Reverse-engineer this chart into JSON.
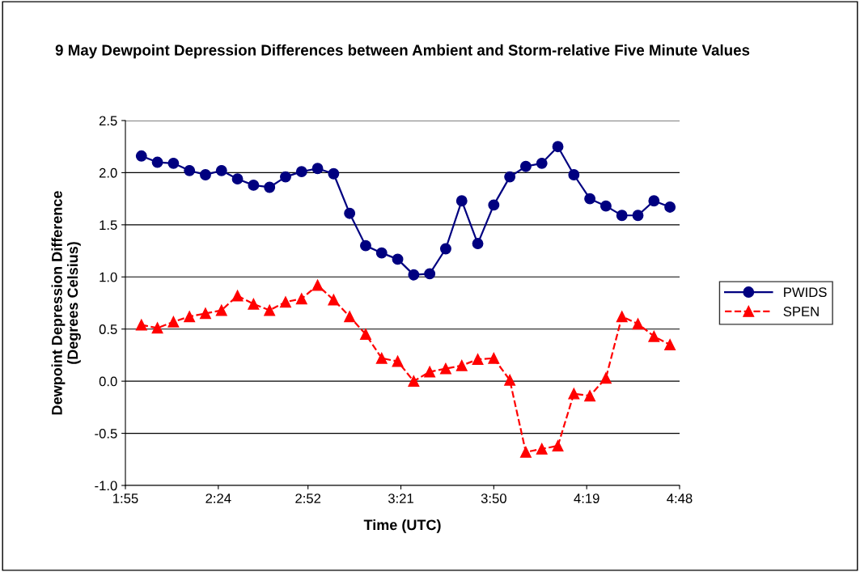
{
  "chart_data": {
    "type": "line",
    "title": "9 May Dewpoint Depression Differences between Ambient and Storm-relative Five Minute Values",
    "xlabel": "Time (UTC)",
    "ylabel": "Dewpoint Depression Difference\n(Degrees Celsius)",
    "x": [
      2.0,
      2.0833,
      2.1667,
      2.25,
      2.3333,
      2.4167,
      2.5,
      2.5833,
      2.6667,
      2.75,
      2.8333,
      2.9167,
      3.0,
      3.0833,
      3.1667,
      3.25,
      3.3333,
      3.4167,
      3.5,
      3.5833,
      3.6667,
      3.75,
      3.8333,
      3.9167,
      4.0,
      4.0833,
      4.1667,
      4.25,
      4.3333,
      4.4167,
      4.5,
      4.5833,
      4.6667,
      4.75
    ],
    "series": [
      {
        "name": "PWIDS",
        "color": "#000080",
        "marker": "circle",
        "line_style": "solid",
        "values": [
          2.16,
          2.1,
          2.09,
          2.02,
          1.98,
          2.02,
          1.94,
          1.88,
          1.86,
          1.96,
          2.01,
          2.04,
          1.99,
          1.61,
          1.3,
          1.23,
          1.17,
          1.02,
          1.03,
          1.27,
          1.73,
          1.32,
          1.69,
          1.96,
          2.06,
          2.09,
          2.25,
          1.98,
          1.75,
          1.68,
          1.59,
          1.59,
          1.73,
          1.67
        ]
      },
      {
        "name": "SPEN",
        "color": "#ff0000",
        "marker": "triangle",
        "line_style": "dashed",
        "values": [
          0.54,
          0.51,
          0.57,
          0.62,
          0.65,
          0.68,
          0.82,
          0.74,
          0.68,
          0.76,
          0.79,
          0.92,
          0.78,
          0.62,
          0.45,
          0.22,
          0.19,
          0.0,
          0.09,
          0.12,
          0.15,
          0.21,
          0.22,
          0.01,
          -0.68,
          -0.65,
          -0.62,
          -0.12,
          -0.14,
          0.03,
          0.62,
          0.55,
          0.43,
          0.35
        ]
      }
    ],
    "xlim": [
      1.9167,
      4.8
    ],
    "xticks": [
      {
        "value": 1.9167,
        "label": "1:55"
      },
      {
        "value": 2.4,
        "label": "2:24"
      },
      {
        "value": 2.8667,
        "label": "2:52"
      },
      {
        "value": 3.35,
        "label": "3:21"
      },
      {
        "value": 3.8333,
        "label": "3:50"
      },
      {
        "value": 4.3167,
        "label": "4:19"
      },
      {
        "value": 4.8,
        "label": "4:48"
      }
    ],
    "ylim": [
      -1.0,
      2.5
    ],
    "yticks": [
      {
        "value": -1.0,
        "label": "-1.0"
      },
      {
        "value": -0.5,
        "label": "-0.5"
      },
      {
        "value": 0.0,
        "label": "0.0"
      },
      {
        "value": 0.5,
        "label": "0.5"
      },
      {
        "value": 1.0,
        "label": "1.0"
      },
      {
        "value": 1.5,
        "label": "1.5"
      },
      {
        "value": 2.0,
        "label": "2.0"
      },
      {
        "value": 2.5,
        "label": "2.5"
      }
    ],
    "grid": "y",
    "legend": "right"
  }
}
